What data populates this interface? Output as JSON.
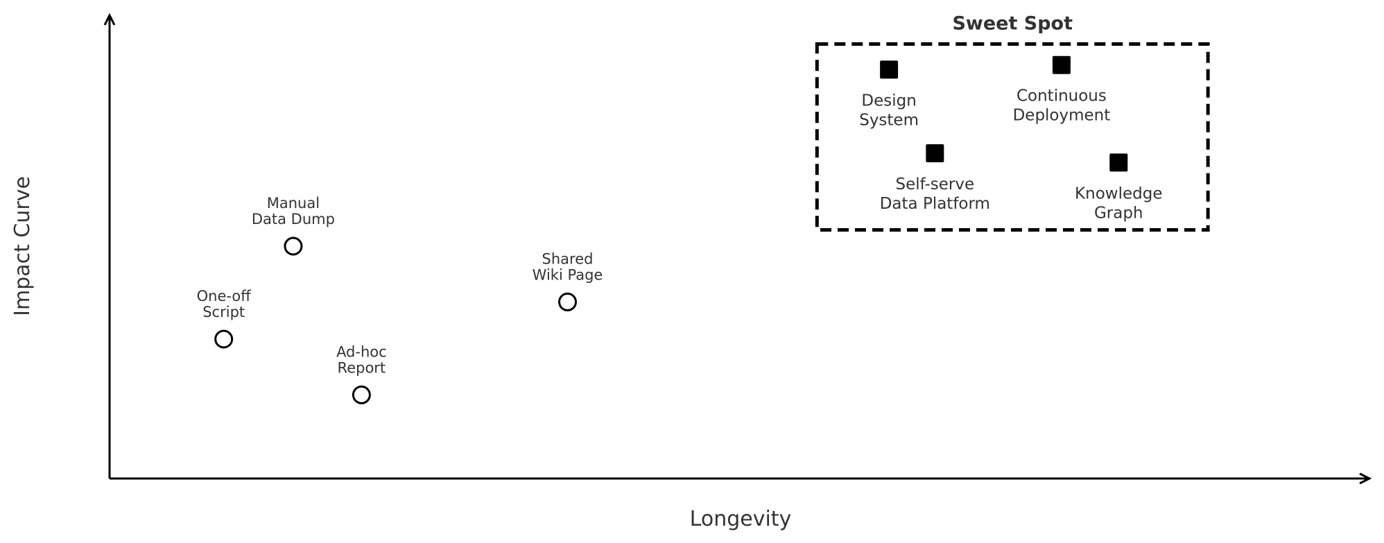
{
  "chart_data": {
    "type": "scatter",
    "xlabel": "Longevity",
    "ylabel": "Impact Curve",
    "xlim": [
      0,
      10
    ],
    "ylim": [
      0,
      10
    ],
    "ticks": false,
    "grid": false,
    "region": {
      "title": "Sweet Spot",
      "style": "dashed",
      "x_range": [
        5.7,
        8.85
      ],
      "y_range": [
        5.35,
        9.35
      ]
    },
    "series": [
      {
        "marker": "open-circle",
        "points": [
          {
            "x": 0.92,
            "y": 3.0,
            "label": [
              "One-off",
              "Script"
            ]
          },
          {
            "x": 1.48,
            "y": 5.0,
            "label": [
              "Manual",
              "Data Dump"
            ]
          },
          {
            "x": 2.03,
            "y": 1.8,
            "label": [
              "Ad-hoc",
              "Report"
            ]
          },
          {
            "x": 3.69,
            "y": 3.8,
            "label": [
              "Shared",
              "Wiki Page"
            ]
          }
        ]
      },
      {
        "marker": "filled-square",
        "points": [
          {
            "x": 6.28,
            "y": 8.8,
            "label": [
              "Design",
              "System"
            ]
          },
          {
            "x": 7.67,
            "y": 8.9,
            "label": [
              "Continuous",
              "Deployment"
            ]
          },
          {
            "x": 6.65,
            "y": 7.0,
            "label": [
              "Self-serve",
              "Data Platform"
            ]
          },
          {
            "x": 8.13,
            "y": 6.8,
            "label": [
              "Knowledge",
              "Graph"
            ]
          }
        ]
      }
    ]
  }
}
